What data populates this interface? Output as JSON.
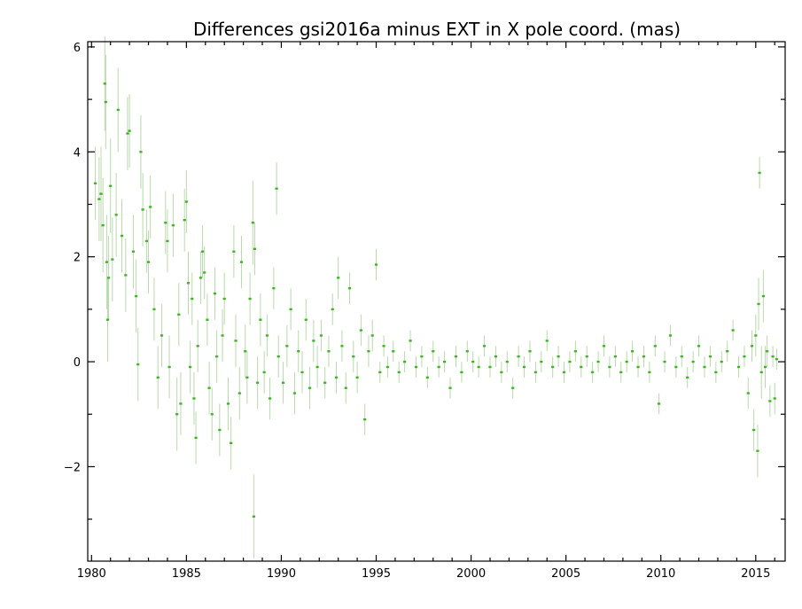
{
  "chart_data": {
    "type": "scatter",
    "title": "Differences gsi2016a minus EXT in X pole coord. (mas)",
    "xlabel": "",
    "ylabel": "",
    "xlim": [
      1979.8,
      2016.55
    ],
    "ylim": [
      -3.8,
      6.1
    ],
    "x_ticks": [
      1980,
      1985,
      1990,
      1995,
      2000,
      2005,
      2010,
      2015
    ],
    "y_ticks": [
      -2,
      0,
      2,
      4,
      6
    ],
    "y_tick_labels": [
      "−2",
      "0",
      "2",
      "4",
      "6"
    ],
    "grid": false,
    "colors": {
      "points": "#44b32a",
      "error_bars": "#b9d9ab"
    },
    "series": [
      {
        "points": [
          [
            1980.2,
            3.4,
            0.7
          ],
          [
            1980.4,
            3.1,
            0.8
          ],
          [
            1980.5,
            3.2,
            0.9
          ],
          [
            1980.6,
            2.6,
            0.9
          ],
          [
            1980.7,
            5.3,
            0.9
          ],
          [
            1980.75,
            4.95,
            0.9
          ],
          [
            1980.8,
            1.9,
            0.9
          ],
          [
            1980.85,
            0.8,
            0.8
          ],
          [
            1980.9,
            1.6,
            0.8
          ],
          [
            1981.0,
            3.35,
            0.9
          ],
          [
            1981.1,
            1.95,
            0.8
          ],
          [
            1981.3,
            2.8,
            0.8
          ],
          [
            1981.4,
            4.8,
            0.8
          ],
          [
            1981.6,
            2.4,
            0.7
          ],
          [
            1981.8,
            1.65,
            0.7
          ],
          [
            1981.9,
            4.35,
            0.7
          ],
          [
            1982.0,
            4.4,
            0.7
          ],
          [
            1982.2,
            2.1,
            0.7
          ],
          [
            1982.35,
            1.25,
            0.7
          ],
          [
            1982.45,
            -0.05,
            0.7
          ],
          [
            1982.6,
            4.0,
            0.7
          ],
          [
            1982.7,
            2.9,
            0.7
          ],
          [
            1982.9,
            2.3,
            0.6
          ],
          [
            1983.0,
            1.9,
            0.6
          ],
          [
            1983.1,
            2.95,
            0.6
          ],
          [
            1983.3,
            1.0,
            0.6
          ],
          [
            1983.5,
            -0.3,
            0.6
          ],
          [
            1983.7,
            0.5,
            0.6
          ],
          [
            1983.9,
            2.65,
            0.6
          ],
          [
            1984.0,
            2.3,
            0.6
          ],
          [
            1984.1,
            -0.1,
            0.6
          ],
          [
            1984.3,
            2.6,
            0.6
          ],
          [
            1984.5,
            -1.0,
            0.7
          ],
          [
            1984.6,
            0.9,
            0.6
          ],
          [
            1984.7,
            -0.8,
            0.6
          ],
          [
            1984.9,
            2.7,
            0.6
          ],
          [
            1985.0,
            3.05,
            0.6
          ],
          [
            1985.1,
            1.5,
            0.6
          ],
          [
            1985.2,
            -0.1,
            0.5
          ],
          [
            1985.3,
            1.2,
            0.5
          ],
          [
            1985.4,
            -0.7,
            0.5
          ],
          [
            1985.5,
            -1.45,
            0.5
          ],
          [
            1985.6,
            0.3,
            0.5
          ],
          [
            1985.75,
            1.6,
            0.5
          ],
          [
            1985.85,
            2.1,
            0.5
          ],
          [
            1985.95,
            1.7,
            0.5
          ],
          [
            1986.1,
            0.8,
            0.5
          ],
          [
            1986.2,
            -0.5,
            0.5
          ],
          [
            1986.35,
            -1.0,
            0.5
          ],
          [
            1986.5,
            1.3,
            0.5
          ],
          [
            1986.6,
            0.1,
            0.5
          ],
          [
            1986.75,
            -1.3,
            0.5
          ],
          [
            1986.9,
            0.5,
            0.5
          ],
          [
            1987.0,
            1.2,
            0.5
          ],
          [
            1987.2,
            -0.8,
            0.5
          ],
          [
            1987.35,
            -1.55,
            0.5
          ],
          [
            1987.5,
            2.1,
            0.5
          ],
          [
            1987.6,
            0.4,
            0.5
          ],
          [
            1987.8,
            -0.6,
            0.5
          ],
          [
            1987.9,
            1.9,
            0.5
          ],
          [
            1988.1,
            0.2,
            0.5
          ],
          [
            1988.2,
            -0.3,
            0.5
          ],
          [
            1988.35,
            1.2,
            0.5
          ],
          [
            1988.5,
            2.65,
            0.8
          ],
          [
            1988.55,
            -2.95,
            0.8
          ],
          [
            1988.6,
            2.15,
            0.5
          ],
          [
            1988.75,
            -0.4,
            0.5
          ],
          [
            1988.9,
            0.8,
            0.5
          ],
          [
            1989.1,
            -0.2,
            0.4
          ],
          [
            1989.25,
            0.5,
            0.4
          ],
          [
            1989.4,
            -0.7,
            0.4
          ],
          [
            1989.6,
            1.4,
            0.4
          ],
          [
            1989.75,
            3.3,
            0.5
          ],
          [
            1989.85,
            0.1,
            0.4
          ],
          [
            1990.1,
            -0.4,
            0.4
          ],
          [
            1990.3,
            0.3,
            0.4
          ],
          [
            1990.5,
            1.0,
            0.4
          ],
          [
            1990.7,
            -0.6,
            0.4
          ],
          [
            1990.9,
            0.2,
            0.4
          ],
          [
            1991.1,
            -0.2,
            0.4
          ],
          [
            1991.3,
            0.8,
            0.4
          ],
          [
            1991.5,
            -0.5,
            0.4
          ],
          [
            1991.7,
            0.4,
            0.4
          ],
          [
            1991.9,
            -0.1,
            0.4
          ],
          [
            1992.1,
            0.5,
            0.3
          ],
          [
            1992.3,
            -0.4,
            0.3
          ],
          [
            1992.5,
            0.2,
            0.3
          ],
          [
            1992.7,
            1.0,
            0.3
          ],
          [
            1992.9,
            -0.3,
            0.3
          ],
          [
            1993.0,
            1.6,
            0.4
          ],
          [
            1993.2,
            0.3,
            0.3
          ],
          [
            1993.4,
            -0.5,
            0.3
          ],
          [
            1993.6,
            1.4,
            0.3
          ],
          [
            1993.8,
            0.1,
            0.3
          ],
          [
            1994.0,
            -0.3,
            0.3
          ],
          [
            1994.2,
            0.6,
            0.3
          ],
          [
            1994.4,
            -1.1,
            0.3
          ],
          [
            1994.6,
            0.2,
            0.3
          ],
          [
            1994.8,
            0.5,
            0.3
          ],
          [
            1995.0,
            1.85,
            0.3
          ],
          [
            1995.2,
            -0.2,
            0.2
          ],
          [
            1995.4,
            0.3,
            0.2
          ],
          [
            1995.6,
            -0.1,
            0.2
          ],
          [
            1995.9,
            0.2,
            0.2
          ],
          [
            1996.2,
            -0.2,
            0.2
          ],
          [
            1996.5,
            0.0,
            0.2
          ],
          [
            1996.8,
            0.4,
            0.2
          ],
          [
            1997.1,
            -0.1,
            0.2
          ],
          [
            1997.4,
            0.1,
            0.2
          ],
          [
            1997.7,
            -0.3,
            0.2
          ],
          [
            1998.0,
            0.2,
            0.2
          ],
          [
            1998.3,
            -0.1,
            0.2
          ],
          [
            1998.6,
            0.0,
            0.2
          ],
          [
            1998.9,
            -0.5,
            0.2
          ],
          [
            1999.2,
            0.1,
            0.2
          ],
          [
            1999.5,
            -0.2,
            0.2
          ],
          [
            1999.8,
            0.2,
            0.2
          ],
          [
            2000.1,
            0.0,
            0.2
          ],
          [
            2000.4,
            -0.1,
            0.2
          ],
          [
            2000.7,
            0.3,
            0.2
          ],
          [
            2001.0,
            -0.1,
            0.2
          ],
          [
            2001.3,
            0.1,
            0.2
          ],
          [
            2001.6,
            -0.2,
            0.2
          ],
          [
            2001.9,
            0.0,
            0.2
          ],
          [
            2002.2,
            -0.5,
            0.2
          ],
          [
            2002.5,
            0.1,
            0.2
          ],
          [
            2002.8,
            -0.1,
            0.2
          ],
          [
            2003.1,
            0.2,
            0.2
          ],
          [
            2003.4,
            -0.2,
            0.2
          ],
          [
            2003.7,
            0.0,
            0.2
          ],
          [
            2004.0,
            0.4,
            0.2
          ],
          [
            2004.3,
            -0.1,
            0.2
          ],
          [
            2004.6,
            0.1,
            0.2
          ],
          [
            2004.9,
            -0.2,
            0.2
          ],
          [
            2005.2,
            0.0,
            0.2
          ],
          [
            2005.5,
            0.2,
            0.2
          ],
          [
            2005.8,
            -0.1,
            0.2
          ],
          [
            2006.1,
            0.1,
            0.2
          ],
          [
            2006.4,
            -0.2,
            0.2
          ],
          [
            2006.7,
            0.0,
            0.2
          ],
          [
            2007.0,
            0.3,
            0.2
          ],
          [
            2007.3,
            -0.1,
            0.2
          ],
          [
            2007.6,
            0.1,
            0.2
          ],
          [
            2007.9,
            -0.2,
            0.2
          ],
          [
            2008.2,
            0.0,
            0.2
          ],
          [
            2008.5,
            0.2,
            0.2
          ],
          [
            2008.8,
            -0.1,
            0.2
          ],
          [
            2009.1,
            0.1,
            0.2
          ],
          [
            2009.4,
            -0.2,
            0.2
          ],
          [
            2009.7,
            0.3,
            0.2
          ],
          [
            2009.9,
            -0.8,
            0.2
          ],
          [
            2010.2,
            0.0,
            0.2
          ],
          [
            2010.5,
            0.5,
            0.2
          ],
          [
            2010.8,
            -0.1,
            0.2
          ],
          [
            2011.1,
            0.1,
            0.2
          ],
          [
            2011.4,
            -0.3,
            0.2
          ],
          [
            2011.7,
            0.0,
            0.2
          ],
          [
            2012.0,
            0.3,
            0.2
          ],
          [
            2012.3,
            -0.1,
            0.2
          ],
          [
            2012.6,
            0.1,
            0.2
          ],
          [
            2012.9,
            -0.2,
            0.2
          ],
          [
            2013.2,
            0.0,
            0.2
          ],
          [
            2013.5,
            0.2,
            0.2
          ],
          [
            2013.8,
            0.6,
            0.2
          ],
          [
            2014.1,
            -0.1,
            0.2
          ],
          [
            2014.4,
            0.1,
            0.2
          ],
          [
            2014.6,
            -0.6,
            0.3
          ],
          [
            2014.8,
            0.3,
            0.3
          ],
          [
            2014.9,
            -1.3,
            0.4
          ],
          [
            2015.0,
            0.5,
            0.4
          ],
          [
            2015.1,
            -1.7,
            0.5
          ],
          [
            2015.15,
            1.1,
            0.5
          ],
          [
            2015.2,
            3.6,
            0.3
          ],
          [
            2015.3,
            -0.2,
            0.5
          ],
          [
            2015.4,
            1.25,
            0.5
          ],
          [
            2015.5,
            -0.1,
            0.4
          ],
          [
            2015.6,
            0.2,
            0.3
          ],
          [
            2015.75,
            -0.75,
            0.3
          ],
          [
            2015.9,
            0.1,
            0.2
          ],
          [
            2016.0,
            -0.7,
            0.3
          ],
          [
            2016.1,
            0.05,
            0.2
          ]
        ]
      }
    ]
  }
}
